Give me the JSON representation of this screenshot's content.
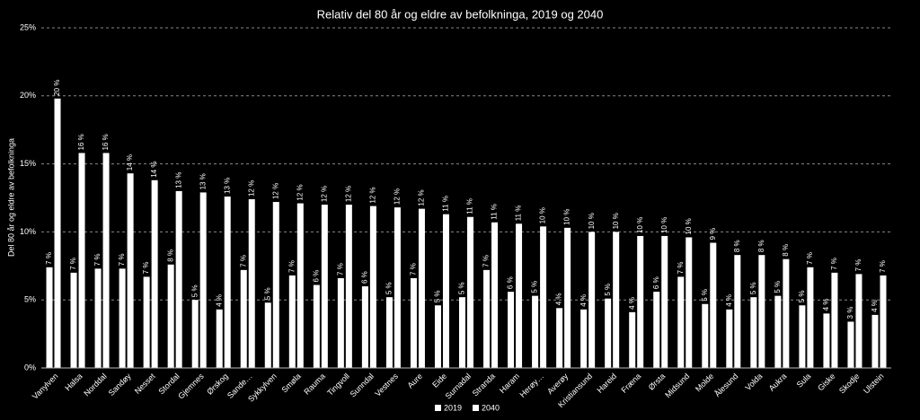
{
  "chart_data": {
    "type": "bar",
    "title": "Relativ del 80 år og eldre av befolkninga, 2019 og 2040",
    "y_label": "Del 80 år og eldre av befolkninga",
    "categories": [
      "Vanylven",
      "Halsa",
      "Norddal",
      "Sandøy",
      "Nesset",
      "Stordal",
      "Gjemnes",
      "Ørskog",
      "Sande…",
      "Sykkylven",
      "Smøla",
      "Rauma",
      "Tingvoll",
      "Sunndal",
      "Vestnes",
      "Aure",
      "Eide",
      "Surnadal",
      "Stranda",
      "Haram",
      "Herøy…",
      "Averøy",
      "Kristiansund",
      "Hareid",
      "Fræna",
      "Ørsta",
      "Midsund",
      "Molde",
      "Ålesund",
      "Volda",
      "Aukra",
      "Sula",
      "Giske",
      "Skodje",
      "Ulstein"
    ],
    "series": [
      {
        "name": "2019",
        "color": "#ffffff",
        "values": [
          7.4,
          7.0,
          7.3,
          7.3,
          6.7,
          7.6,
          5.0,
          4.3,
          7.2,
          4.8,
          6.8,
          6.1,
          6.6,
          6.0,
          5.2,
          6.6,
          4.6,
          5.2,
          7.2,
          5.6,
          5.3,
          4.4,
          4.3,
          5.1,
          4.1,
          5.6,
          6.7,
          4.7,
          4.3,
          5.2,
          5.3,
          4.6,
          4.0,
          3.4,
          3.9
        ],
        "value_labels": [
          "7 %",
          "7 %",
          "7 %",
          "7 %",
          "7 %",
          "8 %",
          "5 %",
          "4 %",
          "7 %",
          "5 %",
          "7 %",
          "6 %",
          "7 %",
          "6 %",
          "5 %",
          "7 %",
          "5 %",
          "5 %",
          "7 %",
          "6 %",
          "5 %",
          "4 %",
          "4 %",
          "5 %",
          "4 %",
          "6 %",
          "7 %",
          "5 %",
          "4 %",
          "5 %",
          "5 %",
          "5 %",
          "4 %",
          "3 %",
          "4 %"
        ]
      },
      {
        "name": "2040",
        "color": "#ffffff",
        "values": [
          19.8,
          15.8,
          15.8,
          14.3,
          13.8,
          13.0,
          12.9,
          12.6,
          12.4,
          12.2,
          12.1,
          12.0,
          12.0,
          11.9,
          11.8,
          11.7,
          11.3,
          11.1,
          10.7,
          10.6,
          10.4,
          10.3,
          10.0,
          10.0,
          9.7,
          9.7,
          9.6,
          9.2,
          8.3,
          8.3,
          8.0,
          7.4,
          7.0,
          6.9,
          6.8
        ],
        "value_labels": [
          "20 %",
          "16 %",
          "16 %",
          "14 %",
          "14 %",
          "13 %",
          "13 %",
          "13 %",
          "12 %",
          "12 %",
          "12 %",
          "12 %",
          "12 %",
          "12 %",
          "12 %",
          "12 %",
          "11 %",
          "11 %",
          "11 %",
          "11 %",
          "10 %",
          "10 %",
          "10 %",
          "10 %",
          "10 %",
          "10 %",
          "10 %",
          "9 %",
          "8 %",
          "8 %",
          "8 %",
          "7 %",
          "7 %",
          "7 %",
          "7 %"
        ]
      }
    ],
    "ylim": [
      0,
      25
    ],
    "yticks": [
      {
        "value": 0,
        "label": "0%"
      },
      {
        "value": 5,
        "label": "5%"
      },
      {
        "value": 10,
        "label": "10%"
      },
      {
        "value": 15,
        "label": "15%"
      },
      {
        "value": 20,
        "label": "20%"
      },
      {
        "value": 25,
        "label": "25%"
      }
    ],
    "grid": true
  }
}
